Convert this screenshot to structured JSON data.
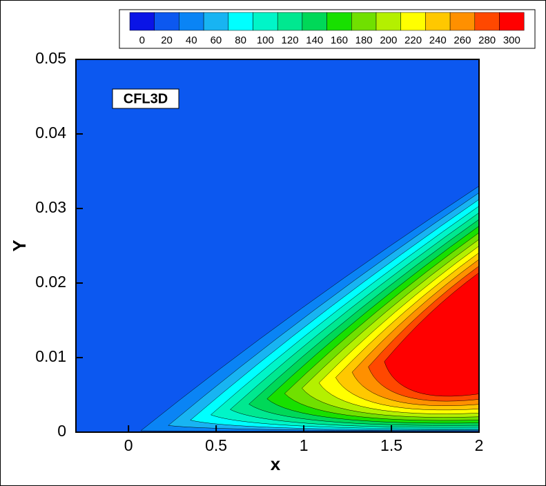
{
  "chart_data": {
    "type": "contour",
    "x_label": "x",
    "y_label": "Y",
    "annotation": "CFL3D",
    "levels": [
      0,
      20,
      40,
      60,
      80,
      100,
      120,
      140,
      160,
      180,
      200,
      220,
      240,
      260,
      280,
      300
    ],
    "colors": [
      "#0a14e6",
      "#0c58f0",
      "#0a84f5",
      "#18b4f2",
      "#00ffff",
      "#00f5c8",
      "#00e890",
      "#00d858",
      "#18e000",
      "#70e000",
      "#b4f000",
      "#ffff00",
      "#ffc800",
      "#ff9000",
      "#ff4800",
      "#ff0000"
    ],
    "xlim": [
      -0.3,
      2
    ],
    "xticks": [
      0,
      0.5,
      1,
      1.5,
      2
    ],
    "ylim": [
      0,
      0.05
    ],
    "yticks": [
      0,
      0.01,
      0.02,
      0.03,
      0.04,
      0.05
    ]
  }
}
